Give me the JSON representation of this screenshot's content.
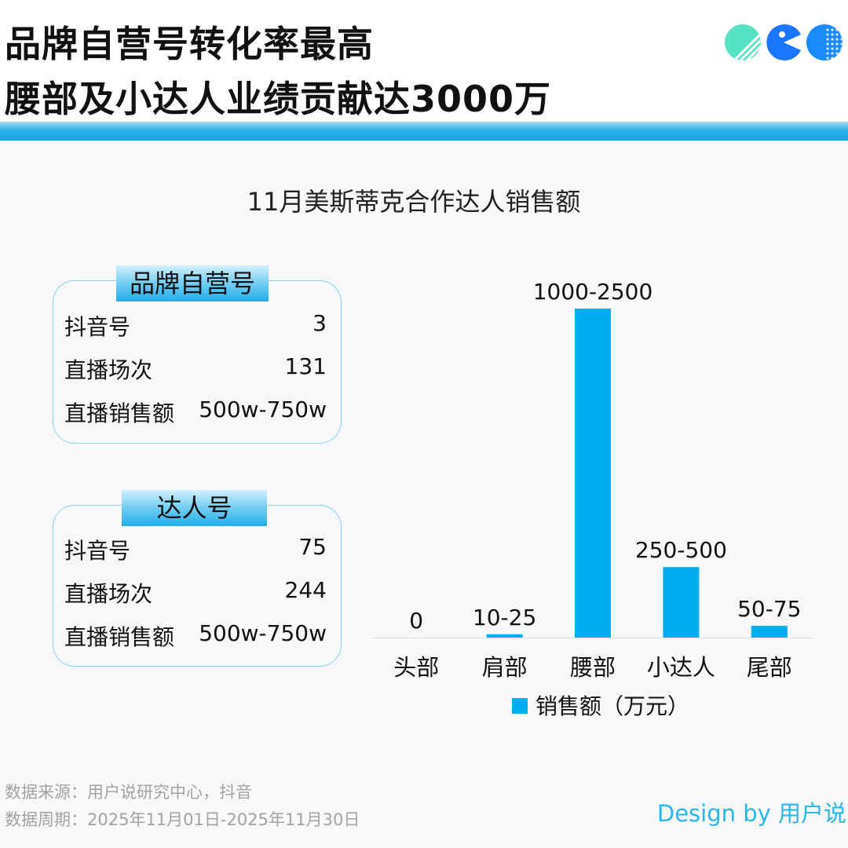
{
  "header": {
    "title_line1": "品牌自营号转化率最高",
    "title_line2": "腰部及小达人业绩贡献达3000万"
  },
  "chart_title": "11月美斯蒂克合作达人销售额",
  "brand_card": {
    "tag": "品牌自营号",
    "rows": [
      {
        "label": "抖音号",
        "value": "3"
      },
      {
        "label": "直播场次",
        "value": "131"
      },
      {
        "label": "直播销售额",
        "value": "500w-750w"
      }
    ]
  },
  "creator_card": {
    "tag": "达人号",
    "rows": [
      {
        "label": "抖音号",
        "value": "75"
      },
      {
        "label": "直播场次",
        "value": "244"
      },
      {
        "label": "直播销售额",
        "value": "500w-750w"
      }
    ]
  },
  "chart_data": {
    "type": "bar",
    "categories": [
      "头部",
      "肩部",
      "腰部",
      "小达人",
      "尾部"
    ],
    "series": [
      {
        "name": "销售额（万元）",
        "values": [
          0,
          17.5,
          1750,
          375,
          62.5
        ],
        "data_labels": [
          "0",
          "10-25",
          "1000-2500",
          "250-500",
          "50-75"
        ]
      }
    ],
    "ylim": [
      0,
      1750
    ],
    "grid": false,
    "legend": "bottom",
    "color": "#00aeef"
  },
  "footnotes": {
    "source": "数据来源：用户说研究中心，抖音",
    "period": "数据周期：2025年11月01日-2025年11月30日"
  },
  "credit": "Design by 用户说",
  "colors": {
    "accent": "#00aeef",
    "stripe": "#11a5e4",
    "logo_green": "#57e3c3",
    "logo_blue": "#1a75ff"
  }
}
